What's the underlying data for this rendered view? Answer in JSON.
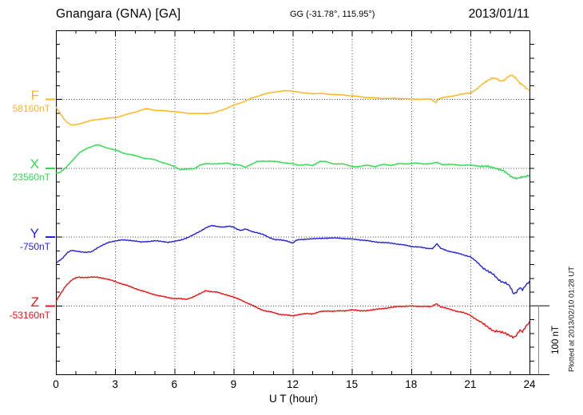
{
  "header": {
    "station_title": "Gnangara (GNA)  [GA]",
    "geo_coords": "GG (-31.78°, 115.95°)",
    "date": "2013/01/11"
  },
  "x_axis": {
    "label": "U T (hour)",
    "range_hours": [
      0,
      24
    ],
    "major_step_hours": 3,
    "minor_step_hours": 1,
    "tick_labels": [
      "0",
      "3",
      "6",
      "9",
      "12",
      "15",
      "18",
      "21",
      "24"
    ]
  },
  "scale_bar": {
    "label": "100 nT",
    "span_nT": 100
  },
  "plot_caption": "Plotted at 2013/02/10 01:28 UT",
  "chart_data": {
    "type": "line",
    "title": "Gnangara (GNA) magnetogram, 2013/01/11",
    "xlabel": "U T (hour)",
    "x_range": [
      0,
      24
    ],
    "y_unit": "nT",
    "nT_per_minor_tick": 20,
    "grid": "dotted vertical lines every 3 h; dotted horizontal line at each trace baseline",
    "legend_position": "left margin, one colored letter + baseline value per trace",
    "series": [
      {
        "name": "F",
        "baseline_label": "58160nT",
        "baseline_nT": 58160,
        "color": "#FFB41E",
        "noise_nT": 0.5,
        "points_hour_offset_nT": [
          [
            0,
            -12
          ],
          [
            0.2,
            -20
          ],
          [
            0.5,
            -32
          ],
          [
            0.8,
            -38
          ],
          [
            1.1,
            -37
          ],
          [
            1.5,
            -33
          ],
          [
            2,
            -30
          ],
          [
            2.5,
            -28
          ],
          [
            3,
            -27
          ],
          [
            3.5,
            -23
          ],
          [
            4,
            -19
          ],
          [
            4.3,
            -16
          ],
          [
            4.6,
            -14
          ],
          [
            5,
            -16
          ],
          [
            5.5,
            -17
          ],
          [
            6,
            -18
          ],
          [
            6.5,
            -20
          ],
          [
            7,
            -21
          ],
          [
            7.5,
            -21
          ],
          [
            8,
            -20
          ],
          [
            8.5,
            -15
          ],
          [
            9,
            -9
          ],
          [
            9.5,
            -4
          ],
          [
            9.8,
            0
          ],
          [
            10,
            2
          ],
          [
            10.5,
            7
          ],
          [
            11,
            10
          ],
          [
            11.5,
            12
          ],
          [
            11.8,
            12
          ],
          [
            12.2,
            11
          ],
          [
            12.5,
            9
          ],
          [
            13,
            8
          ],
          [
            13.5,
            8
          ],
          [
            14,
            7
          ],
          [
            14.5,
            6
          ],
          [
            15,
            5
          ],
          [
            15.5,
            3
          ],
          [
            16,
            2
          ],
          [
            16.5,
            1
          ],
          [
            17,
            1
          ],
          [
            17.5,
            1
          ],
          [
            18,
            0
          ],
          [
            18.5,
            0
          ],
          [
            19,
            0
          ],
          [
            19.25,
            -5
          ],
          [
            19.4,
            1
          ],
          [
            20,
            4
          ],
          [
            20.5,
            7
          ],
          [
            21,
            9
          ],
          [
            21.3,
            14
          ],
          [
            21.6,
            21
          ],
          [
            21.9,
            28
          ],
          [
            22.1,
            31
          ],
          [
            22.3,
            30
          ],
          [
            22.5,
            26
          ],
          [
            22.7,
            27
          ],
          [
            22.9,
            33
          ],
          [
            23.1,
            35
          ],
          [
            23.3,
            30
          ],
          [
            23.5,
            23
          ],
          [
            23.7,
            20
          ],
          [
            23.85,
            16
          ],
          [
            24,
            13
          ]
        ]
      },
      {
        "name": "X",
        "baseline_label": "23560nT",
        "baseline_nT": 23560,
        "color": "#2EDB4E",
        "noise_nT": 0.6,
        "points_hour_offset_nT": [
          [
            0,
            -7
          ],
          [
            0.2,
            -7
          ],
          [
            0.5,
            0
          ],
          [
            0.8,
            10
          ],
          [
            1.2,
            22
          ],
          [
            1.6,
            29
          ],
          [
            2,
            33
          ],
          [
            2.2,
            33
          ],
          [
            2.5,
            30
          ],
          [
            3,
            26
          ],
          [
            3.5,
            21
          ],
          [
            4,
            18
          ],
          [
            4.5,
            14
          ],
          [
            5,
            12
          ],
          [
            5.5,
            7
          ],
          [
            6,
            2
          ],
          [
            6.3,
            -2
          ],
          [
            6.6,
            -2
          ],
          [
            7,
            -1
          ],
          [
            7.3,
            4
          ],
          [
            7.6,
            6
          ],
          [
            8,
            6
          ],
          [
            8.4,
            6
          ],
          [
            8.7,
            7
          ],
          [
            9,
            5
          ],
          [
            9.3,
            4
          ],
          [
            9.6,
            1
          ],
          [
            9.8,
            4
          ],
          [
            10.2,
            9
          ],
          [
            10.5,
            10
          ],
          [
            10.8,
            10
          ],
          [
            11.2,
            9
          ],
          [
            11.5,
            8
          ],
          [
            12,
            6
          ],
          [
            12.3,
            4
          ],
          [
            12.7,
            5
          ],
          [
            13,
            3
          ],
          [
            13.4,
            10
          ],
          [
            13.7,
            9
          ],
          [
            14,
            6
          ],
          [
            14.5,
            6
          ],
          [
            15,
            2
          ],
          [
            15.4,
            2
          ],
          [
            15.8,
            4
          ],
          [
            16.2,
            2
          ],
          [
            16.6,
            5
          ],
          [
            17,
            4
          ],
          [
            17.4,
            6
          ],
          [
            17.8,
            6
          ],
          [
            18.2,
            7
          ],
          [
            18.6,
            6
          ],
          [
            19,
            6
          ],
          [
            19.3,
            8
          ],
          [
            19.6,
            5
          ],
          [
            20,
            5
          ],
          [
            20.5,
            4
          ],
          [
            21,
            4
          ],
          [
            21.4,
            3
          ],
          [
            21.8,
            2
          ],
          [
            22.1,
            1
          ],
          [
            22.4,
            -1
          ],
          [
            22.7,
            -5
          ],
          [
            23,
            -11
          ],
          [
            23.2,
            -14
          ],
          [
            23.4,
            -15
          ],
          [
            23.6,
            -14
          ],
          [
            23.8,
            -13
          ],
          [
            24,
            -10
          ]
        ]
      },
      {
        "name": "Y",
        "baseline_label": "-750nT",
        "baseline_nT": -750,
        "color": "#2323DC",
        "noise_nT": 0.6,
        "points_hour_offset_nT": [
          [
            0,
            -38
          ],
          [
            0.3,
            -32
          ],
          [
            0.6,
            -23
          ],
          [
            0.8,
            -20
          ],
          [
            1.1,
            -21
          ],
          [
            1.5,
            -23
          ],
          [
            1.8,
            -22
          ],
          [
            2.1,
            -16
          ],
          [
            2.4,
            -12
          ],
          [
            2.7,
            -8
          ],
          [
            3,
            -6
          ],
          [
            3.3,
            -5
          ],
          [
            3.7,
            -5
          ],
          [
            4,
            -6
          ],
          [
            4.3,
            -8
          ],
          [
            4.6,
            -7
          ],
          [
            5,
            -6
          ],
          [
            5.4,
            -7
          ],
          [
            5.7,
            -8
          ],
          [
            6,
            -7
          ],
          [
            6.3,
            -5
          ],
          [
            6.7,
            -1
          ],
          [
            7,
            3
          ],
          [
            7.3,
            8
          ],
          [
            7.6,
            13
          ],
          [
            7.9,
            16
          ],
          [
            8.2,
            15
          ],
          [
            8.5,
            14
          ],
          [
            8.8,
            15
          ],
          [
            9,
            14
          ],
          [
            9.2,
            11
          ],
          [
            9.4,
            9
          ],
          [
            9.6,
            11
          ],
          [
            9.9,
            8
          ],
          [
            10.2,
            6
          ],
          [
            10.5,
            3
          ],
          [
            10.8,
            -1
          ],
          [
            11.1,
            -4
          ],
          [
            11.4,
            -5
          ],
          [
            11.7,
            -6
          ],
          [
            12,
            -9
          ],
          [
            12.2,
            -5
          ],
          [
            12.5,
            -4
          ],
          [
            12.8,
            -3
          ],
          [
            13.2,
            -3
          ],
          [
            13.6,
            -2
          ],
          [
            14,
            -2
          ],
          [
            14.4,
            -2
          ],
          [
            14.8,
            -3
          ],
          [
            15.2,
            -4
          ],
          [
            15.6,
            -5
          ],
          [
            16,
            -7
          ],
          [
            16.4,
            -8
          ],
          [
            16.8,
            -9
          ],
          [
            17.2,
            -10
          ],
          [
            17.6,
            -12
          ],
          [
            18,
            -14
          ],
          [
            18.4,
            -15
          ],
          [
            18.8,
            -17
          ],
          [
            19.1,
            -17
          ],
          [
            19.3,
            -10
          ],
          [
            19.5,
            -17
          ],
          [
            19.8,
            -20
          ],
          [
            20.2,
            -23
          ],
          [
            20.6,
            -26
          ],
          [
            21,
            -29
          ],
          [
            21.3,
            -36
          ],
          [
            21.6,
            -44
          ],
          [
            21.9,
            -50
          ],
          [
            22.2,
            -56
          ],
          [
            22.4,
            -62
          ],
          [
            22.6,
            -65
          ],
          [
            22.8,
            -67
          ],
          [
            23,
            -72
          ],
          [
            23.2,
            -84
          ],
          [
            23.35,
            -80
          ],
          [
            23.5,
            -73
          ],
          [
            23.65,
            -77
          ],
          [
            23.8,
            -71
          ],
          [
            24,
            -66
          ]
        ]
      },
      {
        "name": "Z",
        "baseline_label": "-53160nT",
        "baseline_nT": -53160,
        "color": "#EE1212",
        "noise_nT": 0.7,
        "points_hour_offset_nT": [
          [
            0,
            6
          ],
          [
            0.2,
            15
          ],
          [
            0.5,
            29
          ],
          [
            0.8,
            37
          ],
          [
            1.1,
            41
          ],
          [
            1.5,
            41
          ],
          [
            1.9,
            41
          ],
          [
            2.2,
            41
          ],
          [
            2.5,
            39
          ],
          [
            3,
            35
          ],
          [
            3.4,
            31
          ],
          [
            3.8,
            27
          ],
          [
            4.2,
            23
          ],
          [
            4.6,
            19
          ],
          [
            5,
            16
          ],
          [
            5.4,
            13
          ],
          [
            5.8,
            11
          ],
          [
            6.2,
            10
          ],
          [
            6.6,
            9
          ],
          [
            7,
            13
          ],
          [
            7.3,
            17
          ],
          [
            7.6,
            22
          ],
          [
            7.9,
            20
          ],
          [
            8.2,
            19
          ],
          [
            8.6,
            16
          ],
          [
            9,
            12
          ],
          [
            9.4,
            8
          ],
          [
            9.8,
            2
          ],
          [
            10.2,
            -3
          ],
          [
            10.6,
            -8
          ],
          [
            11,
            -10
          ],
          [
            11.4,
            -13
          ],
          [
            11.7,
            -14
          ],
          [
            12,
            -15
          ],
          [
            12.3,
            -13
          ],
          [
            12.7,
            -12
          ],
          [
            13,
            -12
          ],
          [
            13.4,
            -9
          ],
          [
            13.8,
            -8
          ],
          [
            14.2,
            -8
          ],
          [
            14.6,
            -8
          ],
          [
            15,
            -6
          ],
          [
            15.4,
            -8
          ],
          [
            15.8,
            -7
          ],
          [
            16.2,
            -6
          ],
          [
            16.6,
            -4
          ],
          [
            17,
            -3
          ],
          [
            17.4,
            -1
          ],
          [
            17.8,
            -1
          ],
          [
            18.2,
            -1
          ],
          [
            18.6,
            -1
          ],
          [
            19,
            -2
          ],
          [
            19.3,
            3
          ],
          [
            19.5,
            -2
          ],
          [
            19.9,
            -5
          ],
          [
            20.3,
            -8
          ],
          [
            20.7,
            -11
          ],
          [
            21,
            -14
          ],
          [
            21.3,
            -20
          ],
          [
            21.6,
            -26
          ],
          [
            21.9,
            -31
          ],
          [
            22.2,
            -37
          ],
          [
            22.5,
            -39
          ],
          [
            22.8,
            -40
          ],
          [
            23,
            -43
          ],
          [
            23.2,
            -47
          ],
          [
            23.35,
            -44
          ],
          [
            23.5,
            -36
          ],
          [
            23.65,
            -38
          ],
          [
            23.8,
            -30
          ],
          [
            24,
            -24
          ]
        ]
      }
    ]
  }
}
